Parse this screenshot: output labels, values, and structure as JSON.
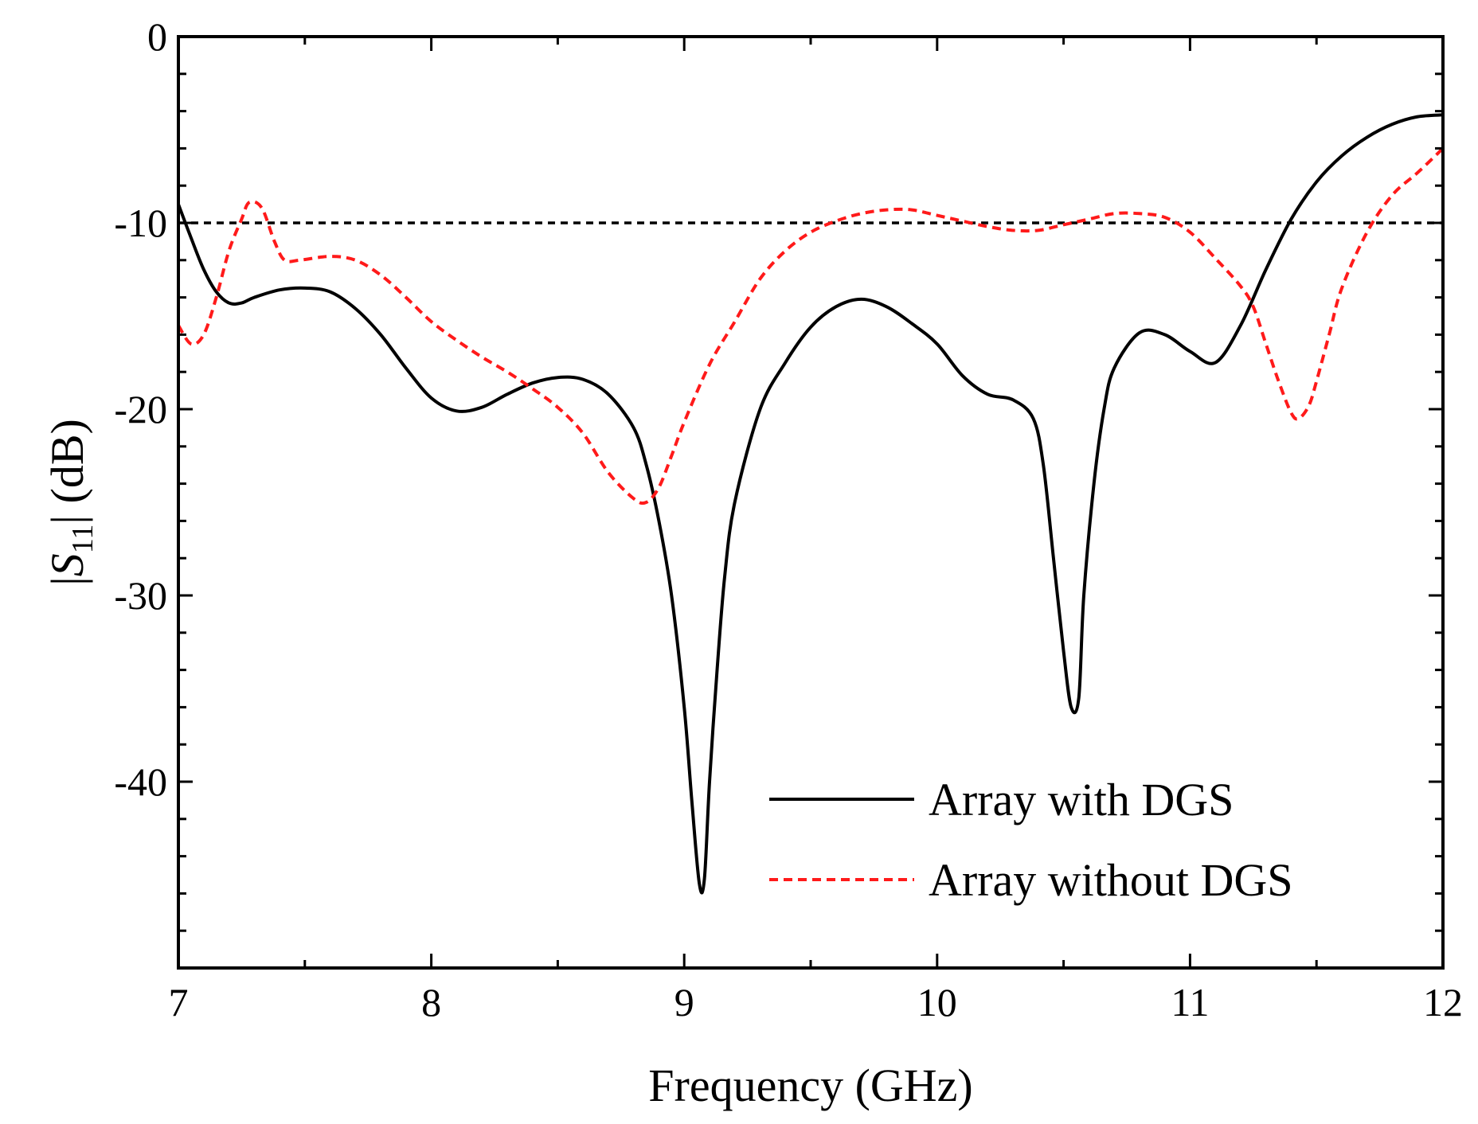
{
  "chart_data": {
    "type": "line",
    "title": "",
    "xlabel": "Frequency (GHz)",
    "ylabel": {
      "prefix": "|",
      "symbol": "S",
      "subscript": "11",
      "suffix": "| (dB)"
    },
    "xlim": [
      7,
      12
    ],
    "ylim": [
      -50,
      0
    ],
    "xticks": [
      7,
      8,
      9,
      10,
      11,
      12
    ],
    "yticks": [
      0,
      -10,
      -20,
      -30,
      -40
    ],
    "ytick_labels": [
      "0",
      "-10",
      "-20",
      "-30",
      "-40"
    ],
    "grid": false,
    "legend_position": "bottom-right",
    "reference_line": {
      "y": -10,
      "style": "dotted",
      "color": "#000000"
    },
    "series": [
      {
        "name": "Array with DGS",
        "color": "#000000",
        "style": "solid",
        "x": [
          7.0,
          7.05,
          7.1,
          7.15,
          7.2,
          7.25,
          7.3,
          7.4,
          7.5,
          7.6,
          7.7,
          7.8,
          7.9,
          8.0,
          8.1,
          8.2,
          8.3,
          8.4,
          8.5,
          8.6,
          8.7,
          8.8,
          8.85,
          8.9,
          8.95,
          9.0,
          9.03,
          9.06,
          9.08,
          9.1,
          9.13,
          9.16,
          9.2,
          9.3,
          9.4,
          9.5,
          9.6,
          9.7,
          9.8,
          9.9,
          10.0,
          10.1,
          10.2,
          10.3,
          10.38,
          10.42,
          10.46,
          10.5,
          10.53,
          10.56,
          10.58,
          10.62,
          10.66,
          10.7,
          10.8,
          10.9,
          11.0,
          11.1,
          11.2,
          11.3,
          11.4,
          11.5,
          11.6,
          11.7,
          11.8,
          11.9,
          12.0
        ],
        "values": [
          -9.0,
          -10.8,
          -12.5,
          -13.7,
          -14.3,
          -14.3,
          -14.0,
          -13.6,
          -13.5,
          -13.7,
          -14.6,
          -16.0,
          -17.8,
          -19.4,
          -20.1,
          -19.9,
          -19.2,
          -18.6,
          -18.3,
          -18.4,
          -19.2,
          -21.0,
          -23.0,
          -26.0,
          -30.0,
          -36.0,
          -41.0,
          -45.5,
          -45.2,
          -40.0,
          -34.0,
          -29.0,
          -25.0,
          -20.0,
          -17.5,
          -15.6,
          -14.5,
          -14.1,
          -14.5,
          -15.4,
          -16.5,
          -18.2,
          -19.2,
          -19.5,
          -20.5,
          -23.0,
          -28.0,
          -33.0,
          -36.0,
          -35.5,
          -30.0,
          -24.0,
          -20.0,
          -17.8,
          -15.9,
          -16.0,
          -16.9,
          -17.5,
          -15.5,
          -12.5,
          -9.8,
          -7.8,
          -6.4,
          -5.4,
          -4.7,
          -4.3,
          -4.2
        ]
      },
      {
        "name": "Array without DGS",
        "color": "#ff1a1a",
        "style": "dashed",
        "x": [
          7.0,
          7.05,
          7.1,
          7.15,
          7.2,
          7.25,
          7.28,
          7.33,
          7.38,
          7.42,
          7.48,
          7.6,
          7.7,
          7.8,
          7.9,
          8.0,
          8.1,
          8.2,
          8.3,
          8.4,
          8.5,
          8.6,
          8.7,
          8.8,
          8.85,
          8.9,
          8.95,
          9.0,
          9.1,
          9.2,
          9.3,
          9.4,
          9.5,
          9.6,
          9.7,
          9.8,
          9.9,
          10.0,
          10.1,
          10.2,
          10.3,
          10.4,
          10.5,
          10.6,
          10.7,
          10.8,
          10.9,
          11.0,
          11.1,
          11.2,
          11.25,
          11.3,
          11.35,
          11.4,
          11.43,
          11.47,
          11.5,
          11.55,
          11.6,
          11.7,
          11.8,
          11.9,
          12.0
        ],
        "values": [
          -15.5,
          -16.5,
          -16.0,
          -14.0,
          -11.5,
          -9.8,
          -8.9,
          -9.2,
          -11.0,
          -12.0,
          -12.0,
          -11.8,
          -12.0,
          -12.8,
          -14.0,
          -15.3,
          -16.3,
          -17.2,
          -18.0,
          -18.9,
          -19.9,
          -21.3,
          -23.4,
          -24.8,
          -25.0,
          -24.2,
          -22.5,
          -20.7,
          -17.6,
          -15.3,
          -13.0,
          -11.5,
          -10.5,
          -9.9,
          -9.5,
          -9.3,
          -9.3,
          -9.6,
          -9.9,
          -10.2,
          -10.4,
          -10.4,
          -10.1,
          -9.8,
          -9.5,
          -9.5,
          -9.7,
          -10.5,
          -11.9,
          -13.4,
          -14.5,
          -16.5,
          -18.5,
          -20.2,
          -20.5,
          -19.8,
          -18.5,
          -16.0,
          -13.5,
          -10.5,
          -8.5,
          -7.3,
          -6.0
        ]
      }
    ]
  }
}
